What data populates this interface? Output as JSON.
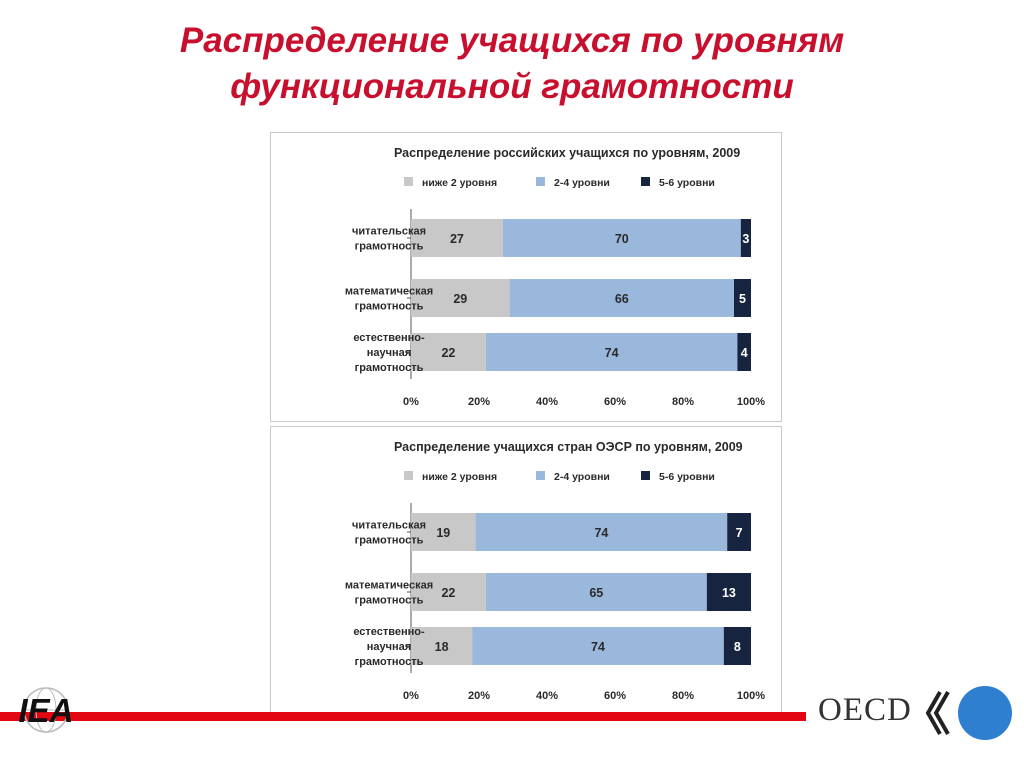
{
  "slide": {
    "title_line1": "Распределение учащихся по уровням",
    "title_line2": "функциональной грамотности"
  },
  "logos": {
    "iea": "IEA",
    "oecd": "OECD"
  },
  "colors": {
    "title": "#c8102e",
    "below2": "#c8c8c8",
    "levels2_4": "#9ab8dc",
    "levels5_6": "#17243f",
    "red_bar": "#e30613",
    "oecd_circle": "#2f7fd0"
  },
  "chart_data": [
    {
      "type": "bar",
      "orientation": "horizontal",
      "stacked": true,
      "title": "Распределение российских учащихся по уровням, 2009",
      "categories": [
        "читательская грамотность",
        "математическая грамотность",
        "естественно-научная грамотность"
      ],
      "category_lines": [
        [
          "читательская",
          "грамотность"
        ],
        [
          "математическая",
          "грамотность"
        ],
        [
          "естественно-",
          "научная",
          "грамотность"
        ]
      ],
      "series": [
        {
          "name": "ниже 2 уровня",
          "values": [
            27,
            29,
            22
          ]
        },
        {
          "name": "2-4 уровни",
          "values": [
            70,
            66,
            74
          ]
        },
        {
          "name": "5-6 уровни",
          "values": [
            3,
            5,
            4
          ]
        }
      ],
      "xlim": [
        0,
        100
      ],
      "xticks": [
        "0%",
        "20%",
        "40%",
        "60%",
        "80%",
        "100%"
      ],
      "legend": "top",
      "grid": false
    },
    {
      "type": "bar",
      "orientation": "horizontal",
      "stacked": true,
      "title": "Распределение учащихся стран ОЭСР по уровням, 2009",
      "categories": [
        "читательская грамотность",
        "математическая грамотность",
        "естественно-научная грамотность"
      ],
      "category_lines": [
        [
          "читательская",
          "грамотность"
        ],
        [
          "математическая",
          "грамотность"
        ],
        [
          "естественно-",
          "научная",
          "грамотность"
        ]
      ],
      "series": [
        {
          "name": "ниже 2 уровня",
          "values": [
            19,
            22,
            18
          ]
        },
        {
          "name": "2-4 уровни",
          "values": [
            74,
            65,
            74
          ]
        },
        {
          "name": "5-6 уровни",
          "values": [
            7,
            13,
            8
          ]
        }
      ],
      "xlim": [
        0,
        100
      ],
      "xticks": [
        "0%",
        "20%",
        "40%",
        "60%",
        "80%",
        "100%"
      ],
      "legend": "top",
      "grid": false
    }
  ]
}
